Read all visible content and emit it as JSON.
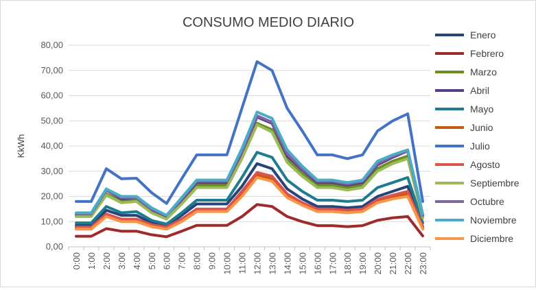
{
  "chart_data": {
    "type": "line",
    "title": "CONSUMO MEDIO DIARIO",
    "xlabel": "",
    "ylabel": "KkWh",
    "ylim": [
      0,
      80
    ],
    "yticks": [
      "0,00",
      "10,00",
      "20,00",
      "30,00",
      "40,00",
      "50,00",
      "60,00",
      "70,00",
      "80,00"
    ],
    "grid": true,
    "legend_position": "right",
    "categories": [
      "0:00",
      "1:00",
      "2:00",
      "3:00",
      "4:00",
      "5:00",
      "6:00",
      "7:00",
      "8:00",
      "9:00",
      "10:00",
      "11:00",
      "12:00",
      "13:00",
      "14:00",
      "15:00",
      "16:00",
      "17:00",
      "18:00",
      "19:00",
      "20:00",
      "21:00",
      "22:00",
      "23:00"
    ],
    "series": [
      {
        "name": "Enero",
        "color": "#264478",
        "values": [
          8.5,
          8.5,
          14.5,
          12.5,
          12.5,
          9.5,
          8,
          12.5,
          17,
          17,
          17,
          24,
          33,
          31,
          23,
          19,
          16,
          16,
          15.5,
          16,
          20,
          22,
          24,
          8
        ]
      },
      {
        "name": "Febrero",
        "color": "#9e2a2b",
        "values": [
          4.2,
          4.2,
          7.2,
          6.2,
          6.2,
          4.8,
          4,
          6.2,
          8.5,
          8.5,
          8.5,
          12,
          16.8,
          16,
          12,
          10,
          8.4,
          8.4,
          8,
          8.4,
          10.5,
          11.5,
          12,
          4.3
        ]
      },
      {
        "name": "Marzo",
        "color": "#6b8e23",
        "values": [
          12.5,
          12.5,
          21,
          18,
          18.5,
          14,
          11.5,
          17.5,
          24.5,
          24.5,
          24.5,
          36,
          49,
          46.5,
          34.5,
          29,
          24.5,
          24.5,
          23.5,
          24.5,
          31,
          34,
          36,
          12
        ]
      },
      {
        "name": "Abril",
        "color": "#5b3a8c",
        "values": [
          13,
          13,
          22.5,
          19,
          19.5,
          14.5,
          12,
          18.5,
          25.5,
          25.5,
          25.5,
          37.5,
          51.5,
          49,
          36,
          30.5,
          25.5,
          25.5,
          24.5,
          25.5,
          32.5,
          35.5,
          38,
          12.5
        ]
      },
      {
        "name": "Mayo",
        "color": "#1f7c8f",
        "values": [
          9.5,
          9.5,
          16,
          13.5,
          14,
          10.5,
          9,
          13.5,
          18.5,
          18.5,
          18.5,
          27.5,
          37.5,
          35.5,
          26.5,
          22,
          18.5,
          18.5,
          18,
          18.5,
          23.5,
          25.5,
          27.5,
          9.5
        ]
      },
      {
        "name": "Junio",
        "color": "#c55a11",
        "values": [
          7.5,
          7.5,
          12.5,
          10.5,
          10.5,
          8.5,
          7.5,
          10.5,
          14.5,
          14.5,
          14.5,
          21,
          28.5,
          27,
          20,
          17,
          14.5,
          14.5,
          14,
          14.5,
          18,
          19.5,
          21,
          7.5
        ]
      },
      {
        "name": "Julio",
        "color": "#4472c4",
        "values": [
          18,
          18,
          31,
          27,
          27.2,
          21.5,
          17.2,
          27,
          36.5,
          36.5,
          36.5,
          55,
          73.5,
          70,
          55,
          46,
          36.5,
          36.5,
          35,
          36.5,
          46,
          50,
          52.8,
          18
        ]
      },
      {
        "name": "Agosto",
        "color": "#d9534f",
        "values": [
          7.8,
          7.8,
          13,
          11,
          11,
          8.8,
          7.8,
          11,
          15,
          15,
          15,
          22,
          29.5,
          28,
          21,
          17.5,
          15,
          15,
          14.5,
          15,
          18.8,
          20.5,
          22,
          7.8
        ]
      },
      {
        "name": "Septiembre",
        "color": "#9bbb59",
        "values": [
          12,
          12,
          20.5,
          17.5,
          18,
          13.5,
          11,
          17,
          23.5,
          23.5,
          23.5,
          35,
          48.5,
          45.5,
          33.5,
          28,
          23.5,
          23.5,
          22.5,
          23.5,
          30,
          33,
          35,
          11.5
        ]
      },
      {
        "name": "Octubre",
        "color": "#8064a2",
        "values": [
          13,
          13,
          22.5,
          19.5,
          19.5,
          15,
          12.5,
          19,
          26,
          26,
          26,
          38,
          52,
          49.5,
          37,
          31,
          26,
          26,
          25,
          26,
          33,
          36,
          38,
          12.5
        ]
      },
      {
        "name": "Noviembre",
        "color": "#4bacc6",
        "values": [
          13.5,
          13.5,
          23,
          20,
          20,
          15.5,
          12.5,
          19.5,
          26.5,
          26.5,
          26.5,
          39,
          53.5,
          51,
          38.5,
          32,
          26.5,
          26.5,
          25.5,
          26.5,
          34,
          36.5,
          38.5,
          13
        ]
      },
      {
        "name": "Diciembre",
        "color": "#f79646",
        "values": [
          7,
          7,
          12,
          10,
          10,
          8,
          7,
          10,
          14,
          14,
          14,
          20,
          27.5,
          26,
          19.5,
          16.5,
          14,
          14,
          13.5,
          14,
          17.5,
          19,
          20,
          7
        ]
      }
    ]
  }
}
